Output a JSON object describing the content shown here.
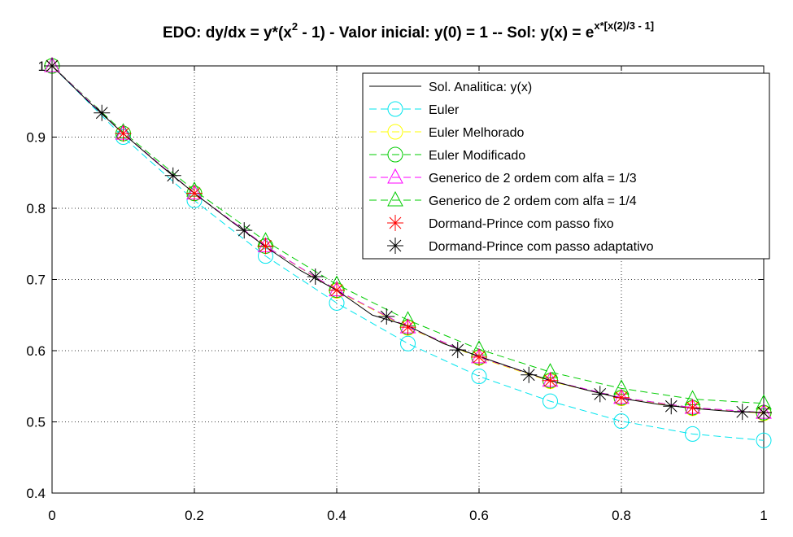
{
  "chart_data": {
    "type": "line",
    "title": {
      "main": "EDO: dy/dx = y*(x",
      "sup1": "2",
      "mid": " - 1) - Valor inicial: y(0) = 1 -- Sol: y(x) = e",
      "sup2": "x*[x(2)/3 - 1]"
    },
    "xlabel": "",
    "ylabel": "",
    "xlim": [
      0,
      1
    ],
    "ylim": [
      0.4,
      1.0
    ],
    "grid": true,
    "legend_position": "top-right",
    "xticks": [
      0,
      0.2,
      0.4,
      0.6,
      0.8,
      1
    ],
    "xtick_labels": [
      "0",
      "0.2",
      "0.4",
      "0.6",
      "0.8",
      "1"
    ],
    "yticks": [
      0.4,
      0.5,
      0.6,
      0.7,
      0.8,
      0.9,
      1.0
    ],
    "ytick_labels": [
      "0.4",
      "0.5",
      "0.6",
      "0.7",
      "0.8",
      "0.9",
      "1"
    ],
    "series": [
      {
        "name": "Sol. Analitica: y(x)",
        "color": "#000000",
        "marker": "none",
        "line": "solid",
        "x": [
          0,
          0.05,
          0.1,
          0.15,
          0.2,
          0.25,
          0.3,
          0.35,
          0.4,
          0.45,
          0.5,
          0.55,
          0.6,
          0.65,
          0.7,
          0.75,
          0.8,
          0.85,
          0.9,
          0.95,
          1.0
        ],
        "y": [
          1.0,
          0.951,
          0.905,
          0.862,
          0.821,
          0.783,
          0.746,
          0.712,
          0.685,
          0.65,
          0.635,
          0.61,
          0.592,
          0.575,
          0.558,
          0.545,
          0.533,
          0.525,
          0.519,
          0.515,
          0.513
        ]
      },
      {
        "name": "Euler",
        "color": "#00e5ee",
        "marker": "circle",
        "line": "dashed",
        "x": [
          0,
          0.1,
          0.2,
          0.3,
          0.4,
          0.5,
          0.6,
          0.7,
          0.8,
          0.9,
          1.0
        ],
        "y": [
          1.0,
          0.9,
          0.811,
          0.733,
          0.667,
          0.61,
          0.564,
          0.529,
          0.501,
          0.483,
          0.474
        ]
      },
      {
        "name": "Euler Melhorado",
        "color": "#ffff00",
        "marker": "circle",
        "line": "dashed",
        "x": [
          0,
          0.1,
          0.2,
          0.3,
          0.4,
          0.5,
          0.6,
          0.7,
          0.8,
          0.9,
          1.0
        ],
        "y": [
          1.0,
          0.905,
          0.821,
          0.747,
          0.684,
          0.632,
          0.59,
          0.557,
          0.533,
          0.519,
          0.512
        ]
      },
      {
        "name": "Euler Modificado",
        "color": "#00cc00",
        "marker": "circle",
        "line": "dashed",
        "x": [
          0,
          0.1,
          0.2,
          0.3,
          0.4,
          0.5,
          0.6,
          0.7,
          0.8,
          0.9,
          1.0
        ],
        "y": [
          1.0,
          0.905,
          0.821,
          0.747,
          0.685,
          0.633,
          0.591,
          0.558,
          0.534,
          0.52,
          0.513
        ]
      },
      {
        "name": "Generico de 2 ordem com alfa = 1/3",
        "color": "#ff00ff",
        "marker": "triangle",
        "line": "dashed",
        "x": [
          0,
          0.1,
          0.2,
          0.3,
          0.4,
          0.5,
          0.6,
          0.7,
          0.8,
          0.9,
          1.0
        ],
        "y": [
          1.0,
          0.905,
          0.821,
          0.747,
          0.685,
          0.633,
          0.591,
          0.558,
          0.534,
          0.52,
          0.513
        ]
      },
      {
        "name": "Generico de 2 ordem com alfa = 1/4",
        "color": "#00cc00",
        "marker": "triangle",
        "line": "dashed",
        "x": [
          0,
          0.1,
          0.2,
          0.3,
          0.4,
          0.5,
          0.6,
          0.7,
          0.8,
          0.9,
          1.0
        ],
        "y": [
          1.0,
          0.907,
          0.825,
          0.754,
          0.693,
          0.643,
          0.602,
          0.57,
          0.547,
          0.532,
          0.526
        ]
      },
      {
        "name": "Dormand-Prince com passo fixo",
        "color": "#ff0000",
        "marker": "asterisk",
        "line": "none",
        "x": [
          0,
          0.1,
          0.2,
          0.3,
          0.4,
          0.5,
          0.6,
          0.7,
          0.8,
          0.9,
          1.0
        ],
        "y": [
          1.0,
          0.905,
          0.821,
          0.747,
          0.685,
          0.633,
          0.591,
          0.558,
          0.534,
          0.52,
          0.513
        ]
      },
      {
        "name": "Dormand-Prince com passo adaptativo",
        "color": "#000000",
        "marker": "asterisk",
        "line": "none",
        "x": [
          0,
          0.07,
          0.17,
          0.27,
          0.37,
          0.47,
          0.57,
          0.67,
          0.77,
          0.87,
          0.97,
          1.0
        ],
        "y": [
          1.0,
          0.934,
          0.846,
          0.769,
          0.704,
          0.648,
          0.601,
          0.566,
          0.539,
          0.522,
          0.514,
          0.513
        ]
      }
    ]
  }
}
